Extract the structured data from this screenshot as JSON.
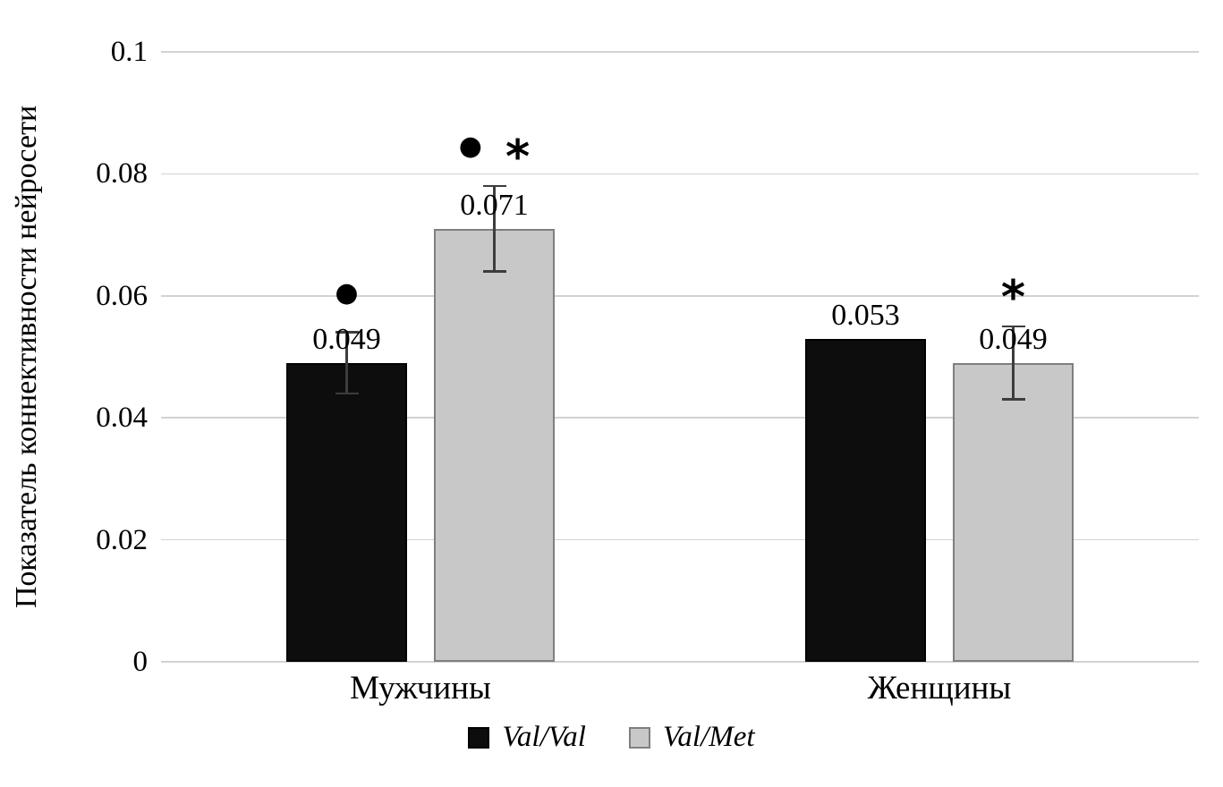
{
  "chart_data": {
    "type": "bar",
    "title": "",
    "ylabel": "Показатель коннективности нейросети",
    "xlabel": "",
    "categories": [
      "Мужчины",
      "Женщины"
    ],
    "series": [
      {
        "name": "Val/Val",
        "color": "#0d0d0d",
        "border": "#000000",
        "values": [
          0.049,
          0.053
        ],
        "errors": [
          0.005,
          0
        ],
        "labels": [
          "0.049",
          "0.053"
        ],
        "markers": [
          [
            "dot"
          ],
          []
        ]
      },
      {
        "name": "Val/Met",
        "color": "#c8c8c8",
        "border": "#7f7f7f",
        "values": [
          0.071,
          0.049
        ],
        "errors": [
          0.007,
          0.006
        ],
        "labels": [
          "0.071",
          "0.049"
        ],
        "markers": [
          [
            "dot",
            "asterisk"
          ],
          [
            "asterisk"
          ]
        ]
      }
    ],
    "ylim": [
      0,
      0.1
    ],
    "yticks": [
      "0.1",
      "0.08",
      "0.06",
      "0.04",
      "0.02",
      "0"
    ],
    "ytick_values": [
      0.1,
      0.08,
      0.06,
      0.04,
      0.02,
      0
    ],
    "grid": true,
    "legend_position": "bottom",
    "icons": {
      "dot": "●",
      "asterisk": "*"
    }
  }
}
